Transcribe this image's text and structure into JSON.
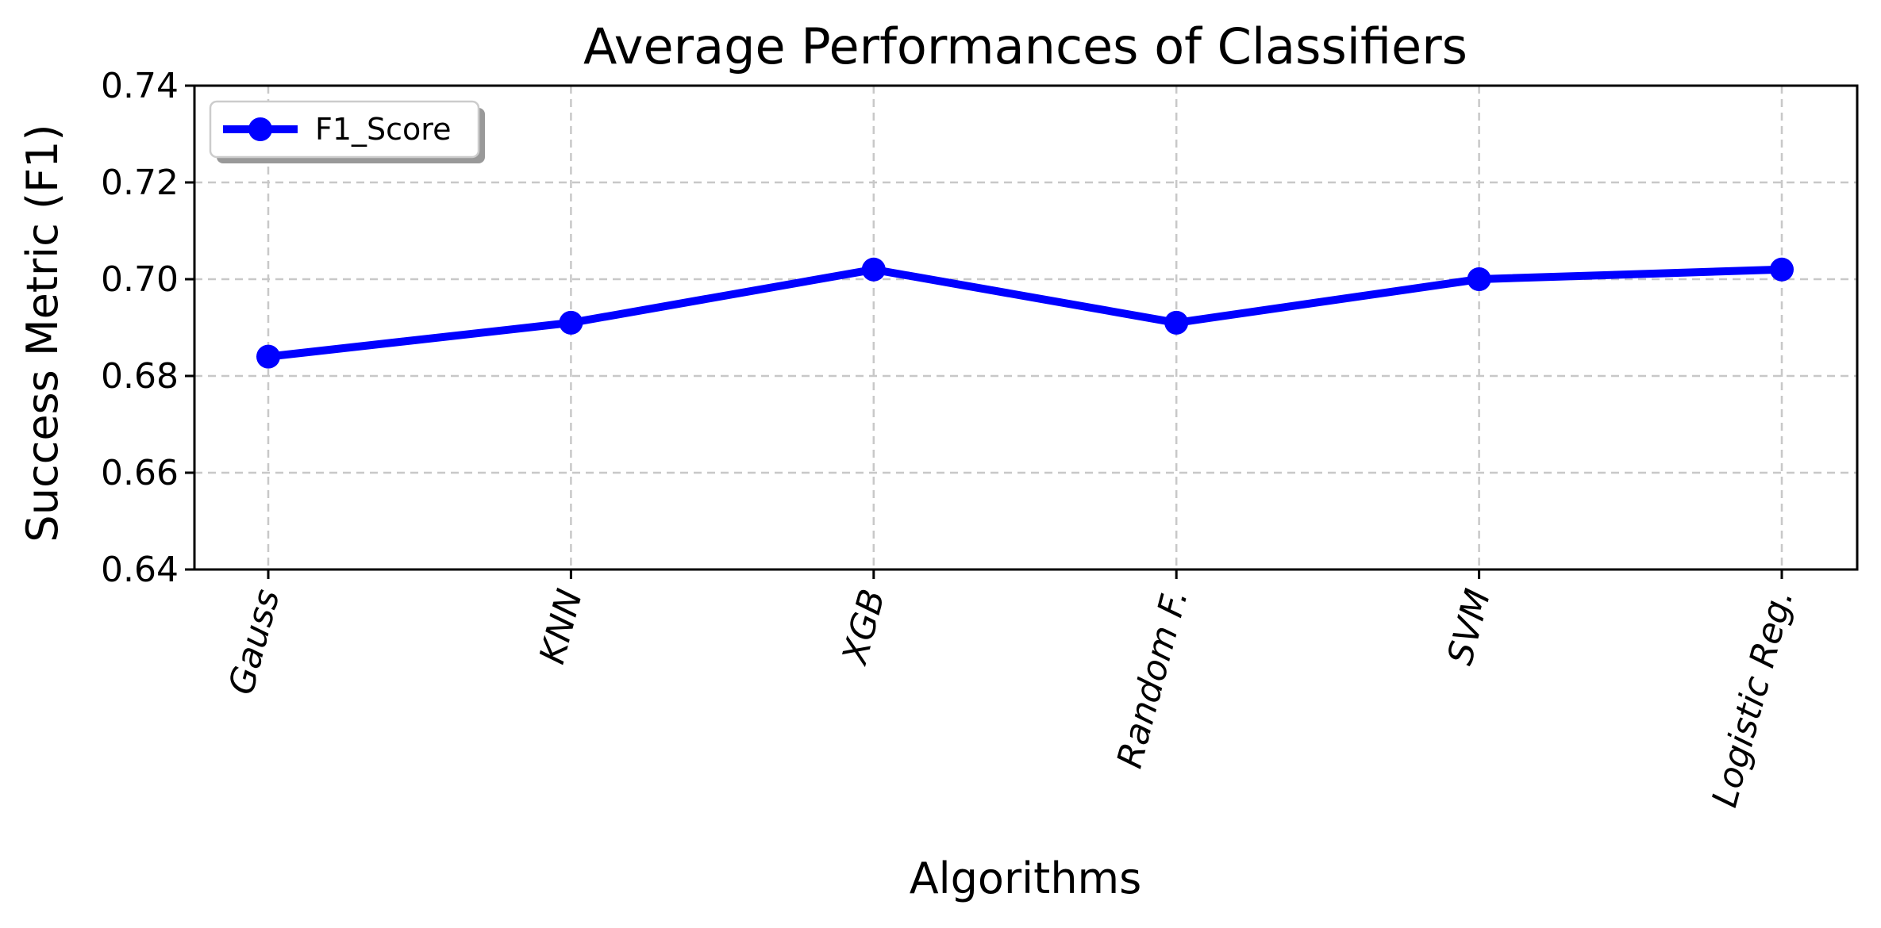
{
  "chart_data": {
    "type": "line",
    "title": "Average Performances of Classifiers",
    "xlabel": "Algorithms",
    "ylabel": "Success Metric (F1)",
    "categories": [
      "Gauss",
      "KNN",
      "XGB",
      "Random F.",
      "SVM",
      "Logistic Reg."
    ],
    "series": [
      {
        "name": "F1_Score",
        "values": [
          0.684,
          0.691,
          0.702,
          0.691,
          0.7,
          0.702
        ],
        "color": "#0000ff"
      }
    ],
    "ylim": [
      0.64,
      0.74
    ],
    "yticks": [
      "0.64",
      "0.66",
      "0.68",
      "0.70",
      "0.72",
      "0.74"
    ],
    "grid": true,
    "grid_style": "dashed",
    "legend_position": "upper-left",
    "xtick_rotation": "75deg"
  }
}
